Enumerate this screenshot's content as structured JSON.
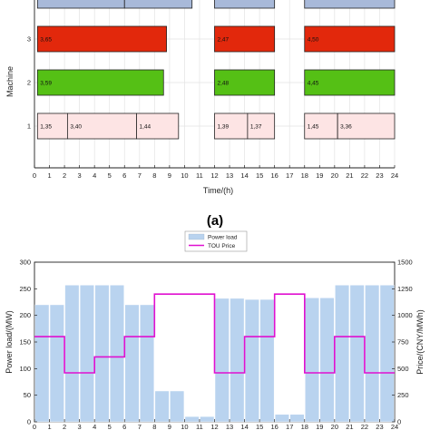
{
  "panel_label": "(a)",
  "chart_data": [
    {
      "type": "gantt",
      "xlabel": "Time/(h)",
      "ylabel": "Machine",
      "xlim": [
        0,
        24
      ],
      "xticks": [
        0,
        1,
        2,
        3,
        4,
        5,
        6,
        7,
        8,
        9,
        10,
        11,
        12,
        13,
        14,
        15,
        16,
        17,
        18,
        19,
        20,
        21,
        22,
        23,
        24
      ],
      "machines": [
        {
          "id": "1",
          "color": "#fde4e4",
          "tasks": [
            {
              "start": 0.2,
              "end": 2.2,
              "label": "1,35"
            },
            {
              "start": 2.2,
              "end": 6.8,
              "label": "3,40"
            },
            {
              "start": 6.8,
              "end": 9.6,
              "label": "1,44"
            },
            {
              "start": 12.0,
              "end": 14.2,
              "label": "1,39"
            },
            {
              "start": 14.2,
              "end": 16.0,
              "label": "1,37"
            },
            {
              "start": 18.0,
              "end": 20.2,
              "label": "1,45"
            },
            {
              "start": 20.2,
              "end": 24.0,
              "label": "3,36"
            }
          ]
        },
        {
          "id": "2",
          "color": "#55c015",
          "tasks": [
            {
              "start": 0.2,
              "end": 8.6,
              "label": "3,59"
            },
            {
              "start": 12.0,
              "end": 16.0,
              "label": "2,48"
            },
            {
              "start": 18.0,
              "end": 24.0,
              "label": "4,45"
            }
          ]
        },
        {
          "id": "3",
          "color": "#e2280c",
          "tasks": [
            {
              "start": 0.2,
              "end": 8.8,
              "label": "3,65"
            },
            {
              "start": 12.0,
              "end": 16.0,
              "label": "2,47"
            },
            {
              "start": 18.0,
              "end": 24.0,
              "label": "4,50"
            }
          ]
        },
        {
          "id": "4",
          "color": "#a8b9d9",
          "tasks": [
            {
              "start": 0.2,
              "end": 6.0,
              "label": ""
            },
            {
              "start": 6.0,
              "end": 10.5,
              "label": ""
            },
            {
              "start": 12.0,
              "end": 16.0,
              "label": ""
            },
            {
              "start": 18.0,
              "end": 24.0,
              "label": ""
            }
          ]
        }
      ]
    },
    {
      "type": "bar",
      "ylabel": "Power load/(MW)",
      "y2label": "Price/(CNY/MWh)",
      "ylim": [
        0,
        300
      ],
      "y2lim": [
        0,
        1500
      ],
      "yticks": [
        0,
        50,
        100,
        150,
        200,
        250,
        300
      ],
      "y2ticks": [
        0,
        250,
        500,
        750,
        1000,
        1250,
        1500
      ],
      "xticks": [
        0,
        1,
        2,
        3,
        4,
        5,
        6,
        7,
        8,
        9,
        10,
        11,
        12,
        13,
        14,
        15,
        16,
        17,
        18,
        19,
        20,
        21,
        22,
        23,
        24
      ],
      "xlim": [
        0,
        24
      ],
      "legend": [
        "Power load",
        "TOU Price"
      ],
      "legend_position": "top-center",
      "bar_color": "#b9d3ef",
      "line_color": "#e010d0",
      "categories": [
        0,
        1,
        2,
        3,
        4,
        5,
        6,
        7,
        8,
        9,
        10,
        11,
        12,
        13,
        14,
        15,
        16,
        17,
        18,
        19,
        20,
        21,
        22,
        23
      ],
      "series": [
        {
          "name": "Power load",
          "values": [
            220,
            220,
            257,
            257,
            257,
            257,
            220,
            220,
            58,
            58,
            10,
            10,
            232,
            232,
            230,
            230,
            14,
            14,
            233,
            233,
            257,
            257,
            257,
            257
          ]
        },
        {
          "name": "TOU Price",
          "values": [
            800,
            800,
            460,
            460,
            610,
            610,
            800,
            800,
            1200,
            1200,
            1200,
            1200,
            460,
            460,
            800,
            800,
            1200,
            1200,
            460,
            460,
            800,
            800,
            460,
            460
          ]
        }
      ]
    }
  ]
}
